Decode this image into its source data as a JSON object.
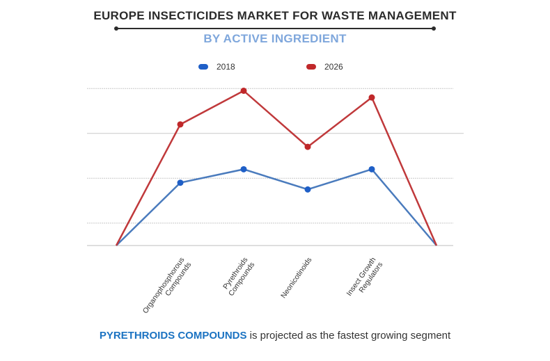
{
  "header": {
    "title": "EUROPE INSECTICIDES MARKET FOR WASTE MANAGEMENT",
    "subtitle": "BY ACTIVE INGREDIENT",
    "subtitle_color": "#7fa7dc"
  },
  "chart_data": {
    "type": "line",
    "title": "EUROPE INSECTICIDES MARKET FOR WASTE MANAGEMENT",
    "subtitle": "BY ACTIVE INGREDIENT",
    "categories": [
      "",
      "Organophosphorous Compounds",
      "Pyrethroids Compounds",
      "Neonicotinoids",
      "Insect Growth Regulators",
      ""
    ],
    "tick_labels": [
      [
        "Organophosphorous",
        "Compounds"
      ],
      [
        "Pyrethroids",
        "Compounds"
      ],
      [
        "Neonicotinoids"
      ],
      [
        "Insect Growth",
        "Regulators"
      ]
    ],
    "series": [
      {
        "name": "2018",
        "color": "#4a7bbd",
        "marker_color": "#1f5fc7",
        "values": [
          0.5,
          1.9,
          2.2,
          1.75,
          2.2,
          0.5
        ]
      },
      {
        "name": "2026",
        "color": "#c0393b",
        "marker_color": "#c0282a",
        "values": [
          0.5,
          3.2,
          3.95,
          2.7,
          3.8,
          0.5
        ]
      }
    ],
    "ylim": [
      0.5,
      4.5
    ],
    "y_gridlines": [
      1,
      2,
      3,
      4
    ],
    "grid": true,
    "legend": "top-center",
    "xlabel": "",
    "ylabel": ""
  },
  "footer": {
    "highlight": "PYRETHROIDS COMPOUNDS",
    "text": " is projected as the fastest growing segment",
    "highlight_color": "#1b73c2"
  }
}
